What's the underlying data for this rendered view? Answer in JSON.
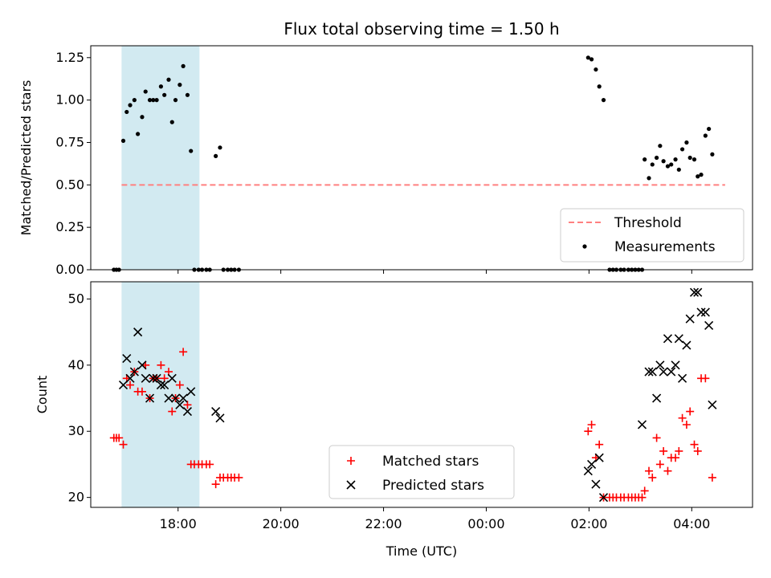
{
  "chart_data": [
    {
      "type": "scatter",
      "title": "Flux total observing time = 1.50 h",
      "ylabel": "Matched/Predicted stars",
      "xlim": [
        "16:18",
        "05:11"
      ],
      "ylim": [
        0,
        1.32
      ],
      "yticks": [
        "0.00",
        "0.25",
        "0.50",
        "0.75",
        "1.00",
        "1.25"
      ],
      "grid": false,
      "legend_position": "lower right",
      "shaded_span": {
        "start": "16:54",
        "end": "18:25",
        "color": "#add8e6"
      },
      "threshold": {
        "name": "Threshold",
        "value": 0.5,
        "x_start": "16:54",
        "x_end": "04:39",
        "color": "#ff8080",
        "style": "dashed"
      },
      "series": [
        {
          "name": "Measurements",
          "color": "#000000",
          "marker": "dot",
          "points": [
            [
              "16:45",
              0
            ],
            [
              "16:48",
              0
            ],
            [
              "16:51",
              0
            ],
            [
              "16:56",
              0.76
            ],
            [
              "17:00",
              0.93
            ],
            [
              "17:04",
              0.97
            ],
            [
              "17:09",
              1.0
            ],
            [
              "17:13",
              0.8
            ],
            [
              "17:18",
              0.9
            ],
            [
              "17:22",
              1.05
            ],
            [
              "17:27",
              1.0
            ],
            [
              "17:31",
              1.0
            ],
            [
              "17:35",
              1.0
            ],
            [
              "17:40",
              1.08
            ],
            [
              "17:44",
              1.03
            ],
            [
              "17:49",
              1.12
            ],
            [
              "17:53",
              0.87
            ],
            [
              "17:57",
              1.0
            ],
            [
              "18:02",
              1.09
            ],
            [
              "18:06",
              1.2
            ],
            [
              "18:11",
              1.03
            ],
            [
              "18:15",
              0.7
            ],
            [
              "18:19",
              0
            ],
            [
              "18:24",
              0
            ],
            [
              "18:28",
              0
            ],
            [
              "18:33",
              0
            ],
            [
              "18:37",
              0
            ],
            [
              "18:44",
              0.67
            ],
            [
              "18:49",
              0.72
            ],
            [
              "18:53",
              0
            ],
            [
              "18:58",
              0
            ],
            [
              "19:02",
              0
            ],
            [
              "19:06",
              0
            ],
            [
              "19:11",
              0
            ],
            [
              "01:59",
              1.25
            ],
            [
              "02:03",
              1.24
            ],
            [
              "02:08",
              1.18
            ],
            [
              "02:12",
              1.08
            ],
            [
              "02:17",
              1.0
            ],
            [
              "02:24",
              0
            ],
            [
              "02:28",
              0
            ],
            [
              "02:32",
              0
            ],
            [
              "02:37",
              0
            ],
            [
              "02:41",
              0
            ],
            [
              "02:46",
              0
            ],
            [
              "02:50",
              0
            ],
            [
              "02:54",
              0
            ],
            [
              "02:58",
              0
            ],
            [
              "03:02",
              0
            ],
            [
              "03:05",
              0.65
            ],
            [
              "03:10",
              0.54
            ],
            [
              "03:14",
              0.62
            ],
            [
              "03:19",
              0.66
            ],
            [
              "03:23",
              0.73
            ],
            [
              "03:27",
              0.64
            ],
            [
              "03:32",
              0.61
            ],
            [
              "03:36",
              0.62
            ],
            [
              "03:41",
              0.65
            ],
            [
              "03:45",
              0.59
            ],
            [
              "03:49",
              0.71
            ],
            [
              "03:54",
              0.75
            ],
            [
              "03:58",
              0.66
            ],
            [
              "04:03",
              0.65
            ],
            [
              "04:07",
              0.55
            ],
            [
              "04:11",
              0.56
            ],
            [
              "04:16",
              0.79
            ],
            [
              "04:20",
              0.83
            ],
            [
              "04:24",
              0.68
            ]
          ]
        }
      ]
    },
    {
      "type": "scatter",
      "xlabel": "Time (UTC)",
      "ylabel": "Count",
      "xlim": [
        "16:18",
        "05:11"
      ],
      "ylim": [
        18.5,
        52.6
      ],
      "xticks": [
        "18:00",
        "20:00",
        "22:00",
        "00:00",
        "02:00",
        "04:00"
      ],
      "yticks": [
        "20",
        "30",
        "40",
        "50"
      ],
      "grid": false,
      "legend_position": "lower center",
      "shaded_span": {
        "start": "16:54",
        "end": "18:25",
        "color": "#add8e6"
      },
      "series": [
        {
          "name": "Matched stars",
          "color": "#ff0000",
          "marker": "plus",
          "points": [
            [
              "16:45",
              29
            ],
            [
              "16:48",
              29
            ],
            [
              "16:51",
              29
            ],
            [
              "16:56",
              28
            ],
            [
              "17:00",
              38
            ],
            [
              "17:04",
              37
            ],
            [
              "17:09",
              39
            ],
            [
              "17:13",
              36
            ],
            [
              "17:18",
              36
            ],
            [
              "17:22",
              40
            ],
            [
              "17:27",
              35
            ],
            [
              "17:31",
              38
            ],
            [
              "17:35",
              38
            ],
            [
              "17:40",
              40
            ],
            [
              "17:44",
              38
            ],
            [
              "17:49",
              39
            ],
            [
              "17:53",
              33
            ],
            [
              "17:57",
              35
            ],
            [
              "18:02",
              37
            ],
            [
              "18:06",
              42
            ],
            [
              "18:11",
              34
            ],
            [
              "18:15",
              25
            ],
            [
              "18:19",
              25
            ],
            [
              "18:24",
              25
            ],
            [
              "18:28",
              25
            ],
            [
              "18:33",
              25
            ],
            [
              "18:37",
              25
            ],
            [
              "18:44",
              22
            ],
            [
              "18:49",
              23
            ],
            [
              "18:53",
              23
            ],
            [
              "18:58",
              23
            ],
            [
              "19:02",
              23
            ],
            [
              "19:06",
              23
            ],
            [
              "19:11",
              23
            ],
            [
              "01:59",
              30
            ],
            [
              "02:03",
              31
            ],
            [
              "02:08",
              26
            ],
            [
              "02:12",
              28
            ],
            [
              "02:17",
              20
            ],
            [
              "02:24",
              20
            ],
            [
              "02:28",
              20
            ],
            [
              "02:32",
              20
            ],
            [
              "02:37",
              20
            ],
            [
              "02:41",
              20
            ],
            [
              "02:46",
              20
            ],
            [
              "02:50",
              20
            ],
            [
              "02:54",
              20
            ],
            [
              "02:58",
              20
            ],
            [
              "03:02",
              20
            ],
            [
              "03:05",
              21
            ],
            [
              "03:10",
              24
            ],
            [
              "03:14",
              23
            ],
            [
              "03:19",
              29
            ],
            [
              "03:23",
              25
            ],
            [
              "03:27",
              27
            ],
            [
              "03:32",
              24
            ],
            [
              "03:36",
              26
            ],
            [
              "03:41",
              26
            ],
            [
              "03:45",
              27
            ],
            [
              "03:49",
              32
            ],
            [
              "03:54",
              31
            ],
            [
              "03:58",
              33
            ],
            [
              "04:03",
              28
            ],
            [
              "04:07",
              27
            ],
            [
              "04:11",
              38
            ],
            [
              "04:16",
              38
            ],
            [
              "04:24",
              23
            ]
          ]
        },
        {
          "name": "Predicted stars",
          "color": "#000000",
          "marker": "x",
          "points": [
            [
              "16:56",
              37
            ],
            [
              "17:00",
              41
            ],
            [
              "17:04",
              38
            ],
            [
              "17:09",
              39
            ],
            [
              "17:13",
              45
            ],
            [
              "17:18",
              40
            ],
            [
              "17:22",
              38
            ],
            [
              "17:27",
              35
            ],
            [
              "17:31",
              38
            ],
            [
              "17:35",
              38
            ],
            [
              "17:40",
              37
            ],
            [
              "17:44",
              37
            ],
            [
              "17:49",
              35
            ],
            [
              "17:53",
              38
            ],
            [
              "17:57",
              35
            ],
            [
              "18:02",
              34
            ],
            [
              "18:06",
              35
            ],
            [
              "18:11",
              33
            ],
            [
              "18:15",
              36
            ],
            [
              "18:44",
              33
            ],
            [
              "18:49",
              32
            ],
            [
              "01:59",
              24
            ],
            [
              "02:03",
              25
            ],
            [
              "02:08",
              22
            ],
            [
              "02:12",
              26
            ],
            [
              "02:17",
              20
            ],
            [
              "03:02",
              31
            ],
            [
              "03:10",
              39
            ],
            [
              "03:14",
              39
            ],
            [
              "03:19",
              35
            ],
            [
              "03:23",
              40
            ],
            [
              "03:27",
              39
            ],
            [
              "03:32",
              44
            ],
            [
              "03:36",
              39
            ],
            [
              "03:41",
              40
            ],
            [
              "03:45",
              44
            ],
            [
              "03:49",
              38
            ],
            [
              "03:54",
              43
            ],
            [
              "03:58",
              47
            ],
            [
              "04:03",
              51
            ],
            [
              "04:07",
              51
            ],
            [
              "04:11",
              48
            ],
            [
              "04:16",
              48
            ],
            [
              "04:20",
              46
            ],
            [
              "04:24",
              34
            ]
          ]
        }
      ]
    }
  ]
}
